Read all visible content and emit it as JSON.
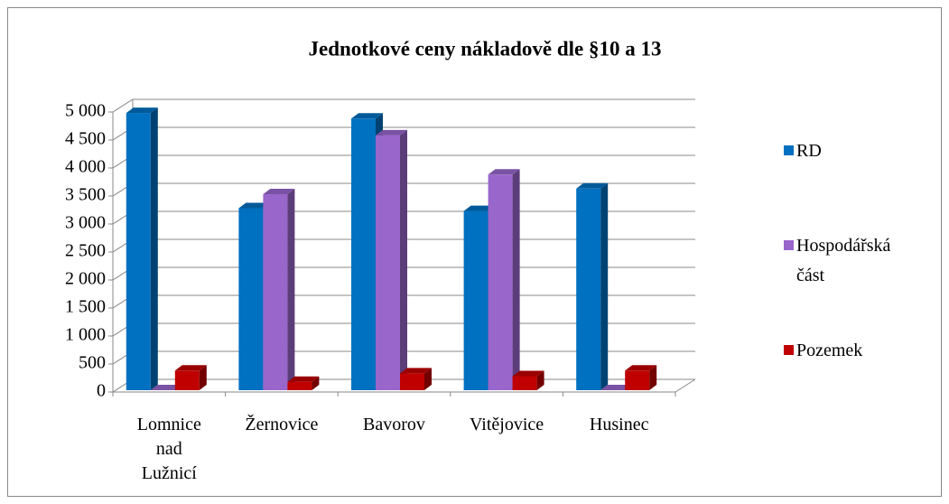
{
  "chart_data": {
    "type": "bar3d",
    "title": "Jednotkové ceny nákladově dle §10 a 13",
    "categories": [
      "Lomnice nad Lužnicí",
      "Žernovice",
      "Bavorov",
      "Vitějovice",
      "Husinec"
    ],
    "series": [
      {
        "name": "RD",
        "color": "#0070c0",
        "values": [
          4950,
          3250,
          4850,
          3200,
          3600
        ]
      },
      {
        "name": "Hospodářská část",
        "color": "#9966cc",
        "values": [
          0,
          3500,
          4550,
          3850,
          0
        ]
      },
      {
        "name": "Pozemek",
        "color": "#c00000",
        "values": [
          350,
          150,
          300,
          250,
          350
        ]
      }
    ],
    "ylim": [
      0,
      5000
    ],
    "yticks": [
      0,
      500,
      {
        "value": 1000,
        "label": "1 000"
      },
      {
        "value": 1500,
        "label": "1 500"
      },
      {
        "value": 2000,
        "label": "2 000"
      },
      {
        "value": 2500,
        "label": "2 500"
      },
      {
        "value": 3000,
        "label": "3 000"
      },
      {
        "value": 3500,
        "label": "3 500"
      },
      {
        "value": 4000,
        "label": "4 000"
      },
      {
        "value": 4500,
        "label": "4 500"
      },
      {
        "value": 5000,
        "label": "5 000"
      }
    ],
    "grid": true,
    "legend": "right"
  }
}
